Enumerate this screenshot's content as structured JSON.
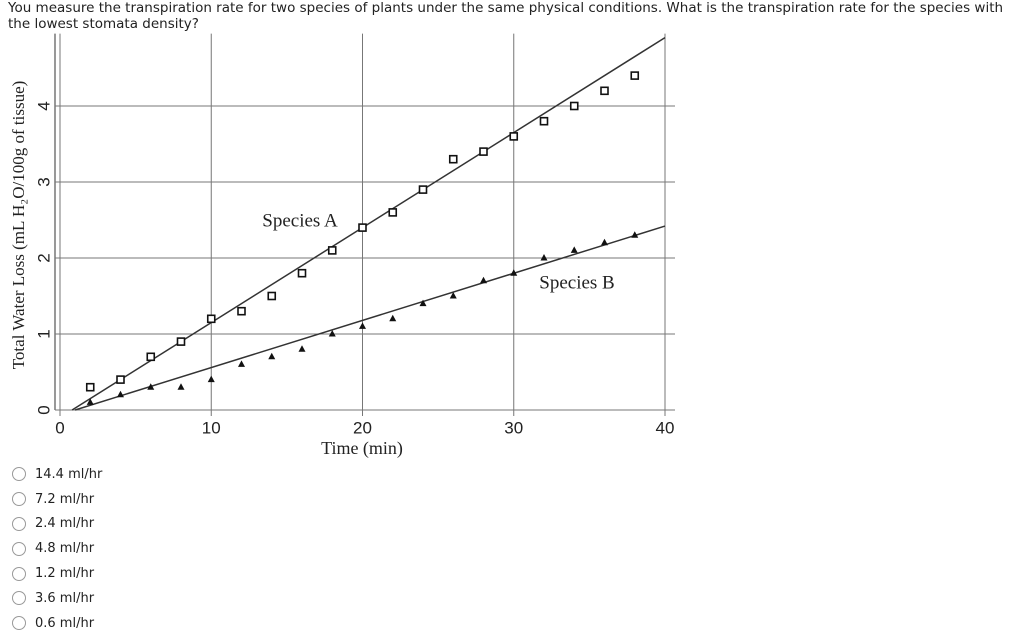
{
  "question": "You measure the transpiration rate for two species of plants under the same physical conditions.  What is the transpiration rate for the species with the lowest stomata density?",
  "chart_data": {
    "type": "scatter",
    "x_label": "Time (min)",
    "y_label": "Total Water Loss (mL H₂O/100g of tissue)",
    "xlim": [
      0,
      40
    ],
    "xticks": [
      0,
      10,
      20,
      30,
      40
    ],
    "ylim": [
      0,
      4.9
    ],
    "yticks": [
      0,
      1,
      2,
      3,
      4
    ],
    "grid": true,
    "series": [
      {
        "name": "Species A",
        "marker": "square",
        "color": "#111111",
        "x": [
          2,
          4,
          6,
          8,
          10,
          12,
          14,
          16,
          18,
          20,
          22,
          24,
          26,
          28,
          30,
          32,
          34,
          36,
          38
        ],
        "values": [
          0.3,
          0.4,
          0.7,
          0.9,
          1.2,
          1.3,
          1.5,
          1.8,
          2.1,
          2.4,
          2.6,
          2.9,
          3.3,
          3.4,
          3.6,
          3.8,
          4.0,
          4.2,
          4.4
        ],
        "trend": {
          "x": [
            0.8,
            40
          ],
          "values": [
            0,
            4.9
          ]
        }
      },
      {
        "name": "Species B",
        "marker": "triangle",
        "color": "#111111",
        "x": [
          2,
          4,
          6,
          8,
          10,
          12,
          14,
          16,
          18,
          20,
          22,
          24,
          26,
          28,
          30,
          32,
          34,
          36,
          38
        ],
        "values": [
          0.1,
          0.2,
          0.3,
          0.3,
          0.4,
          0.6,
          0.7,
          0.8,
          1.0,
          1.1,
          1.2,
          1.4,
          1.5,
          1.7,
          1.8,
          2.0,
          2.1,
          2.2,
          2.3
        ],
        "trend": {
          "x": [
            1,
            40
          ],
          "values": [
            0,
            2.42
          ]
        }
      }
    ]
  },
  "options": [
    "14.4 ml/hr",
    "7.2 ml/hr",
    "2.4 ml/hr",
    "4.8 ml/hr",
    "1.2 ml/hr",
    "3.6 ml/hr",
    "0.6 ml/hr"
  ]
}
